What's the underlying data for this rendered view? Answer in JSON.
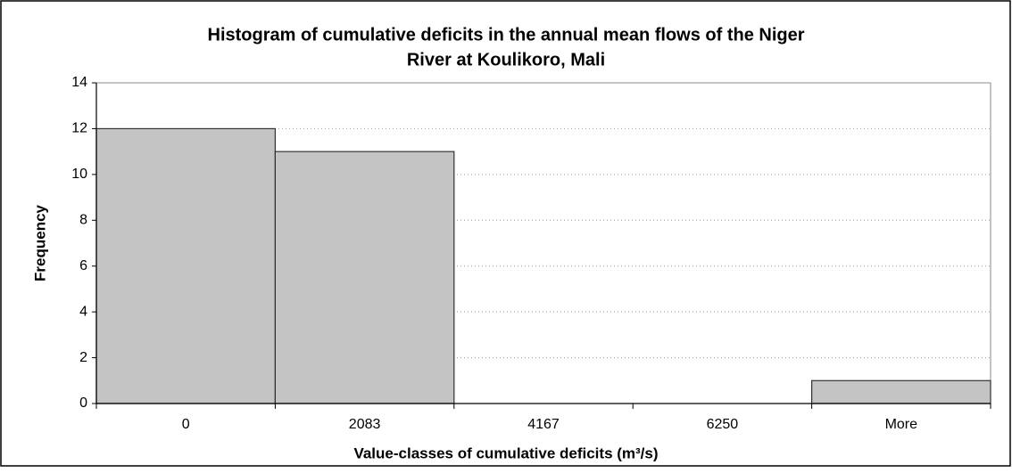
{
  "chart_data": {
    "type": "bar",
    "title": [
      "Histogram of cumulative deficits in the annual mean flows of the Niger",
      "River at Koulikoro, Mali"
    ],
    "x_label": "Value-classes of cumulative deficits (m³/s)",
    "y_label": "Frequency",
    "categories": [
      "0",
      "2083",
      "4167",
      "6250",
      "More"
    ],
    "values": [
      12,
      11,
      0,
      0,
      1
    ],
    "color": "#c4c4c4",
    "ylim": [
      0,
      14
    ],
    "yticks": [
      0,
      2,
      4,
      6,
      8,
      10,
      12,
      14
    ],
    "grid": true
  }
}
